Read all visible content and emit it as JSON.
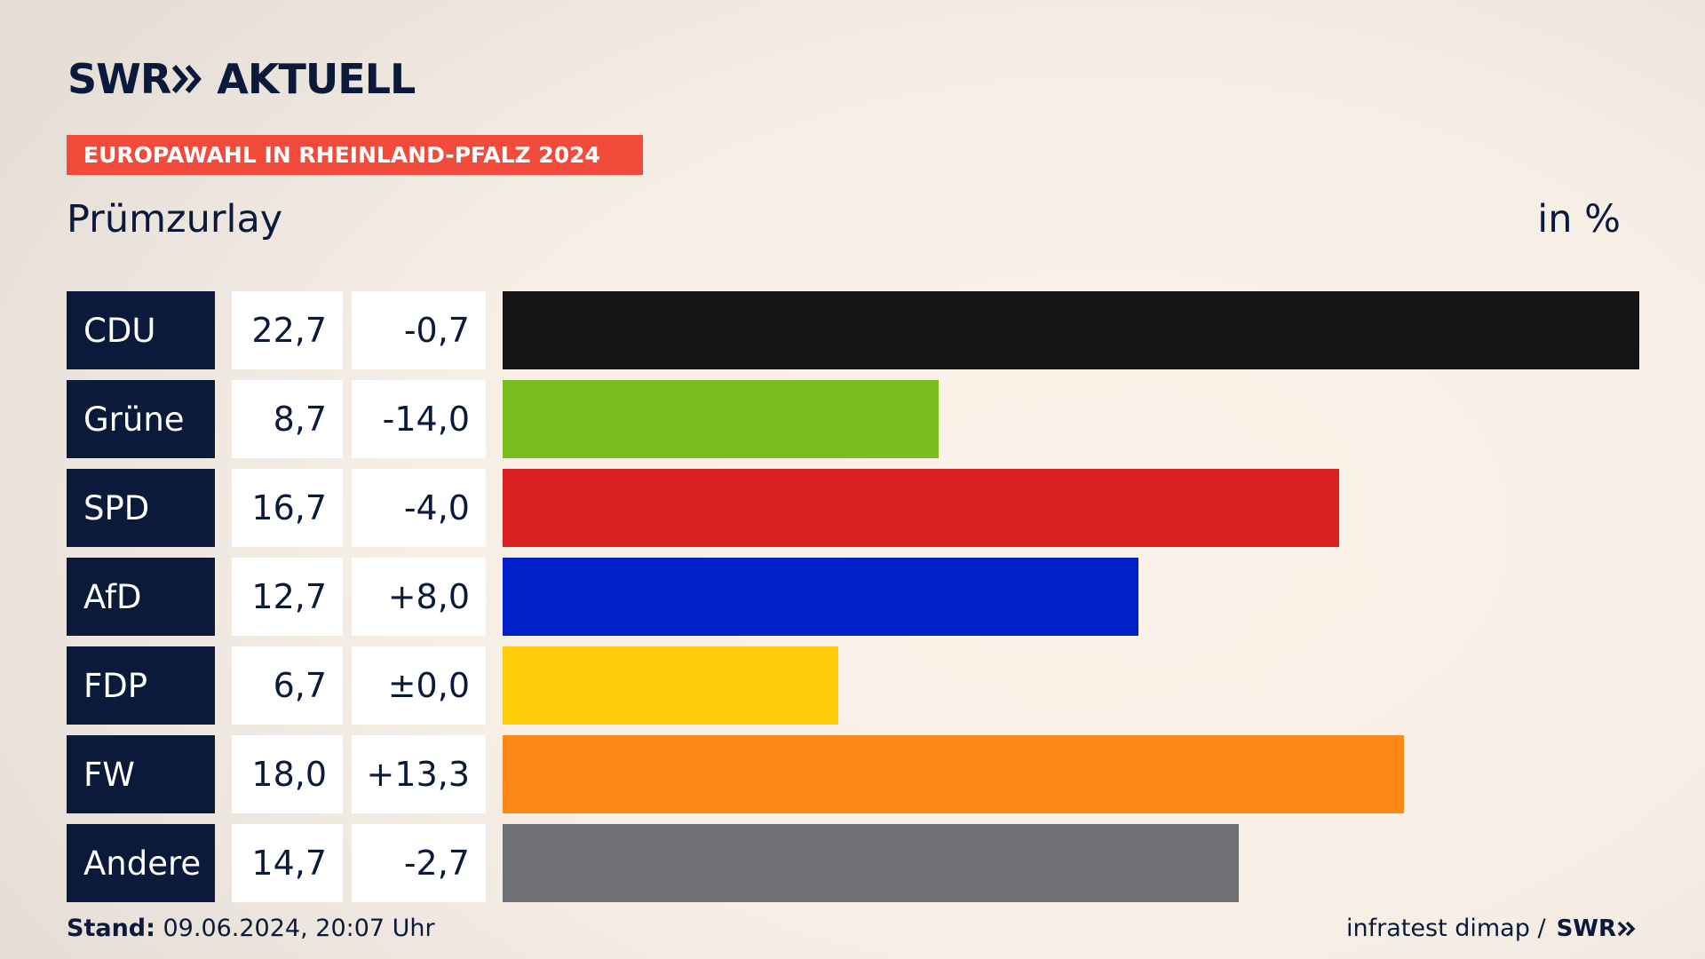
{
  "brand": {
    "swr": "SWR",
    "aktuell": "AKTUELL"
  },
  "header": {
    "banner": "EUROPAWAHL IN RHEINLAND-PFALZ 2024",
    "region": "Prümzurlay",
    "unit": "in %"
  },
  "footer": {
    "stand_label": "Stand:",
    "stand_value": " 09.06.2024, 20:07 Uhr",
    "source": "infratest dimap /",
    "swr": "SWR"
  },
  "rows": [
    {
      "party": "CDU",
      "value": "22,7",
      "diff": "-0,7"
    },
    {
      "party": "Grüne",
      "value": "8,7",
      "diff": "-14,0"
    },
    {
      "party": "SPD",
      "value": "16,7",
      "diff": "-4,0"
    },
    {
      "party": "AfD",
      "value": "12,7",
      "diff": "+8,0"
    },
    {
      "party": "FDP",
      "value": "6,7",
      "diff": "±0,0"
    },
    {
      "party": "FW",
      "value": "18,0",
      "diff": "+13,3"
    },
    {
      "party": "Andere",
      "value": "14,7",
      "diff": "-2,7"
    }
  ],
  "chart_data": {
    "type": "bar",
    "orientation": "horizontal",
    "title": "EUROPAWAHL IN RHEINLAND-PFALZ 2024",
    "subtitle": "Prümzurlay",
    "unit": "in %",
    "categories": [
      "CDU",
      "Grüne",
      "SPD",
      "AfD",
      "FDP",
      "FW",
      "Andere"
    ],
    "values": [
      22.7,
      8.7,
      16.7,
      12.7,
      6.7,
      18.0,
      14.7
    ],
    "changes": [
      -0.7,
      -14.0,
      -4.0,
      8.0,
      0.0,
      13.3,
      -2.7
    ],
    "colors": [
      "#141414",
      "#7bbd1e",
      "#d7201f",
      "#0021c9",
      "#ffcc0a",
      "#fd8a17",
      "#6f7073"
    ],
    "xlim": [
      0,
      22.7
    ]
  }
}
